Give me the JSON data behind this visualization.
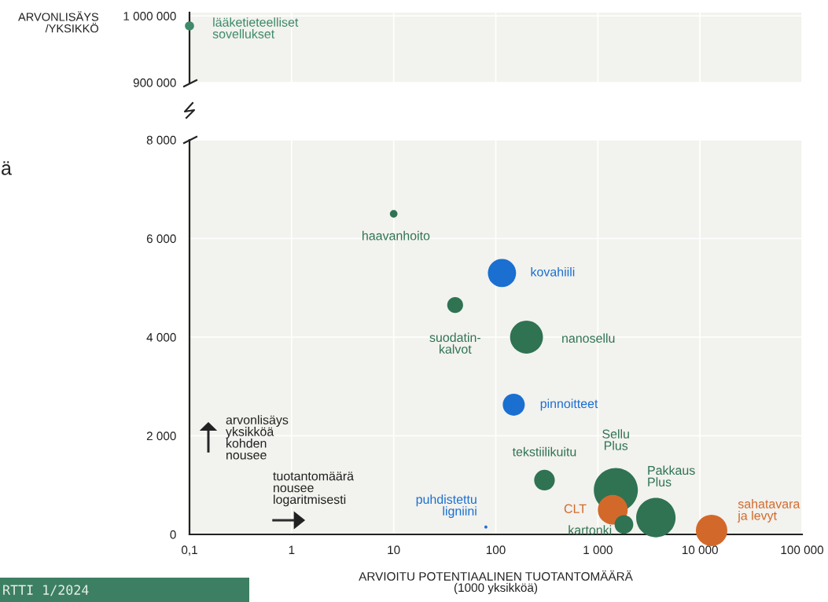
{
  "chart_data": [
    {
      "type": "scatter",
      "ylabel": "ARVONLISÄYS\n/YKSIKKÖ",
      "log": "x",
      "grid": true,
      "tick_labels": "y",
      "xlim": [
        0.1,
        100000
      ],
      "xticks": [
        0.1,
        1,
        10,
        100,
        1000,
        10000,
        100000
      ],
      "ylim": [
        900000,
        1005000
      ],
      "yticks": [
        {
          "value": 900000,
          "label": "900 000"
        },
        {
          "value": 1000000,
          "label": "1 000 000"
        }
      ],
      "series": [
        {
          "name": "lääketieteelliset\nsovellukset",
          "color": "#3e8a6a",
          "x": [
            0.1
          ],
          "values": [
            985000
          ]
        }
      ]
    },
    {
      "type": "bubble",
      "xlabel": "ARVIOITU POTENTIAALINEN TUOTANTOMÄÄRÄ\n(1000 yksikköä)",
      "log": "x",
      "grid": true,
      "xlim": [
        0.1,
        100000
      ],
      "xticks": [
        {
          "value": 0.1,
          "label": "0,1"
        },
        1,
        10,
        100,
        {
          "value": 1000,
          "label": "1 000"
        },
        {
          "value": 10000,
          "label": "10 000"
        },
        {
          "value": 100000,
          "label": "100 000"
        }
      ],
      "ylim": [
        0,
        8000
      ],
      "yticks": [
        0,
        {
          "value": 2000,
          "label": "2 000"
        },
        {
          "value": 4000,
          "label": "4 000"
        },
        {
          "value": 6000,
          "label": "6 000"
        },
        {
          "value": 8000,
          "label": "8 000"
        }
      ],
      "series": [
        {
          "name": "haavanhoito",
          "color": "#2f7352",
          "x": [
            10
          ],
          "values": [
            6500
          ],
          "sizes": [
            0.03
          ]
        },
        {
          "name": "kovahiili",
          "color": "#1a6fd1",
          "x": [
            115
          ],
          "values": [
            5300
          ],
          "sizes": [
            0.41
          ]
        },
        {
          "name": "suodatin-\nkalvot",
          "color": "#2f7352",
          "x": [
            40
          ],
          "values": [
            4650
          ],
          "sizes": [
            0.13
          ]
        },
        {
          "name": "nanosellu",
          "color": "#2f7352",
          "x": [
            200
          ],
          "values": [
            4000
          ],
          "sizes": [
            0.56
          ]
        },
        {
          "name": "pinnoitteet",
          "color": "#1a6fd1",
          "x": [
            150
          ],
          "values": [
            2630
          ],
          "sizes": [
            0.25
          ]
        },
        {
          "name": "tekstiilikuitu",
          "color": "#2f7352",
          "x": [
            300
          ],
          "values": [
            1100
          ],
          "sizes": [
            0.22
          ]
        },
        {
          "name": "puhdistettu\nligniini",
          "color": "#1a6fd1",
          "x": [
            80
          ],
          "values": [
            150
          ],
          "sizes": [
            0.005
          ]
        },
        {
          "name": "Sellu\nPlus",
          "color": "#2f7352",
          "x": [
            1500
          ],
          "values": [
            900
          ],
          "sizes": [
            1
          ]
        },
        {
          "name": "CLT",
          "color": "#d2692a",
          "x": [
            1400
          ],
          "values": [
            500
          ],
          "sizes": [
            0.46
          ]
        },
        {
          "name": "kartonki",
          "color": "#2f7352",
          "x": [
            1800
          ],
          "values": [
            200
          ],
          "sizes": [
            0.18
          ]
        },
        {
          "name": "Pakkaus\nPlus",
          "color": "#2f7352",
          "x": [
            3700
          ],
          "values": [
            340
          ],
          "sizes": [
            0.8
          ]
        },
        {
          "name": "sahatavara\nja levyt",
          "color": "#d2692a",
          "x": [
            13000
          ],
          "values": [
            80
          ],
          "sizes": [
            0.51
          ]
        }
      ],
      "annotations": [
        "arvonlisäys\nyksikköä\nkohden\nnousee",
        "tuotantomäärä\nnousee\nlogaritmisesti",
        "ä",
        "RTTI 1/2024"
      ]
    }
  ]
}
